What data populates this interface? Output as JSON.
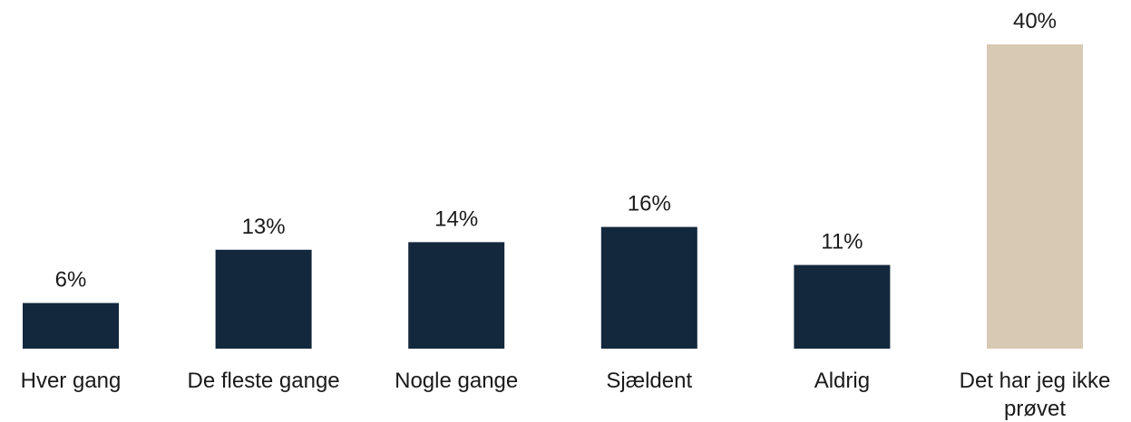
{
  "chart_data": {
    "type": "bar",
    "categories": [
      "Hver gang",
      "De fleste gange",
      "Nogle gange",
      "Sjældent",
      "Aldrig",
      "Det har jeg ikke prøvet"
    ],
    "category_lines": [
      [
        "Hver gang"
      ],
      [
        "De fleste gange"
      ],
      [
        "Nogle gange"
      ],
      [
        "Sjældent"
      ],
      [
        "Aldrig"
      ],
      [
        "Det har jeg ikke",
        "prøvet"
      ]
    ],
    "values": [
      6,
      13,
      14,
      16,
      11,
      40
    ],
    "value_labels": [
      "6%",
      "13%",
      "14%",
      "16%",
      "11%",
      "40%"
    ],
    "bar_colors": [
      "#13283d",
      "#13283d",
      "#13283d",
      "#13283d",
      "#13283d",
      "#d8c9b5"
    ],
    "ylim": [
      0,
      40
    ],
    "grid": false,
    "legend": "none"
  }
}
